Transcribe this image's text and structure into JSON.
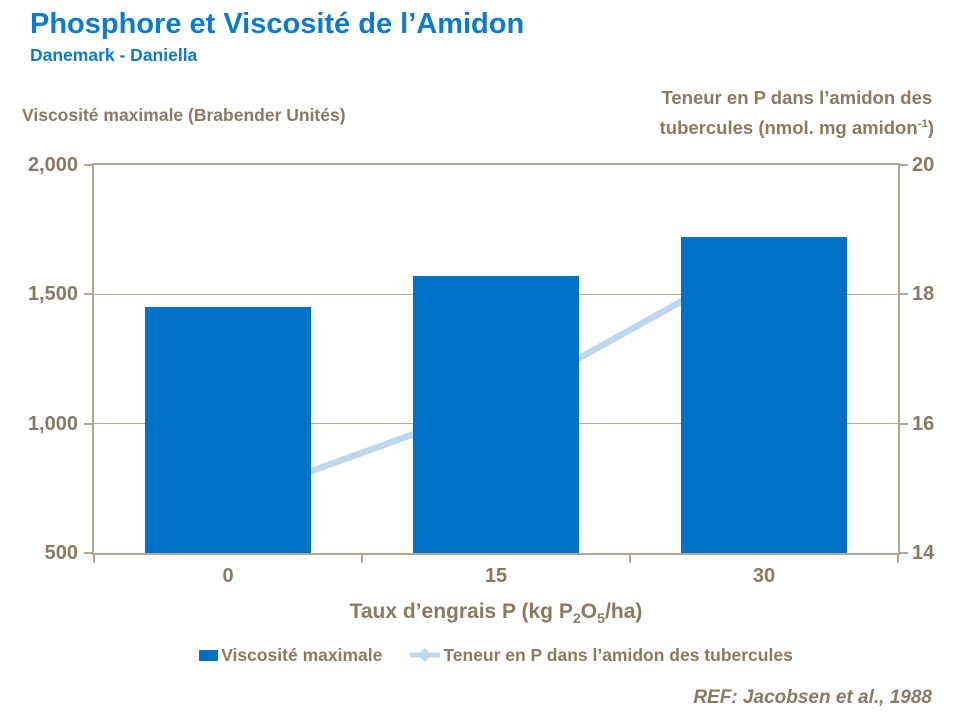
{
  "header": {
    "title": "Phosphore et Viscosité de l’Amidon",
    "subtitle": "Danemark - Daniella"
  },
  "footer": {
    "ref": "REF: Jacobsen et al., 1988"
  },
  "colors": {
    "title_blue": "#0d7ad2",
    "bar_blue": "#0072C6",
    "line_light_blue": "#BDD7EE",
    "label_tan": "#8a7a63",
    "axis_line": "#b3a593",
    "gridline": "#b9ac9c",
    "background": "#ffffff"
  },
  "chart_data": {
    "type": "bar",
    "subtype": "combo: bars (left axis) + line with diamond markers (right axis)",
    "categories": [
      "0",
      "15",
      "30"
    ],
    "series": [
      {
        "name": "Viscosité maximale",
        "type": "bar",
        "axis": "left",
        "values": [
          1450,
          1570,
          1720
        ],
        "color": "#0072C6"
      },
      {
        "name": "Teneur en P dans l’amidon des tubercules",
        "type": "line",
        "axis": "right",
        "values": [
          14.8,
          16.3,
          18.6
        ],
        "color": "#BDD7EE",
        "marker": "diamond"
      }
    ],
    "left_axis": {
      "title": "Viscosité maximale (Brabender Unités)",
      "min": 500,
      "max": 2000,
      "ticks": [
        "2,000",
        "1,500",
        "1,000",
        "500"
      ]
    },
    "right_axis": {
      "title_line1": "Teneur en P dans l’amidon des",
      "title_line2": "tubercules (nmol. mg amidon",
      "title_sup": "-1",
      "title_close": ")",
      "min": 14,
      "max": 20,
      "ticks": [
        "20",
        "18",
        "16",
        "14"
      ]
    },
    "x_axis": {
      "title_p1": "Taux d’engrais P (kg P",
      "title_sub1": "2",
      "title_p2": "O",
      "title_sub2": "5",
      "title_p3": "/ha)",
      "labels": [
        "0",
        "15",
        "30"
      ]
    },
    "legend": {
      "items": [
        "Viscosité maximale",
        "Teneur en P dans l’amidon des tubercules"
      ],
      "position": "bottom center"
    },
    "grid": "horizontal gridlines at major ticks",
    "left_ylim": [
      500,
      2000
    ],
    "right_ylim": [
      14,
      20
    ]
  }
}
